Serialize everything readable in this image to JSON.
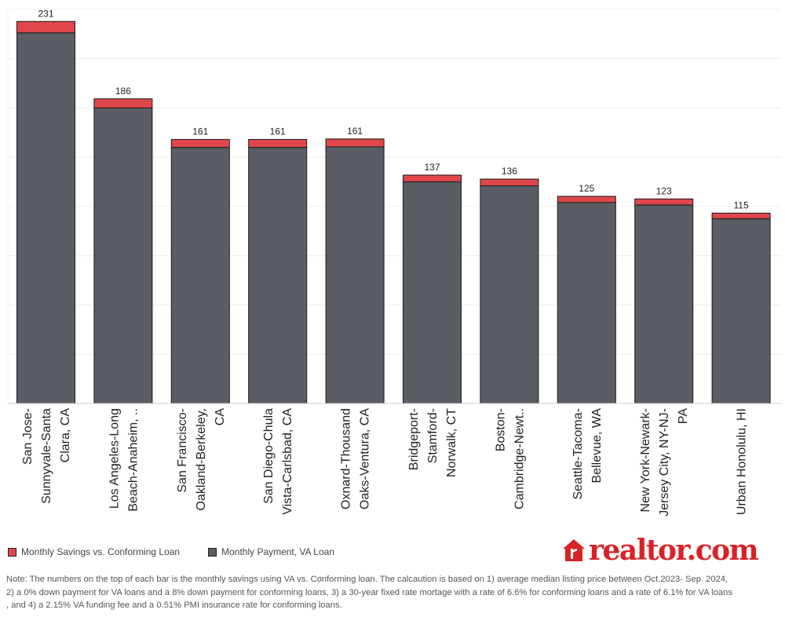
{
  "chart_data": {
    "type": "bar",
    "stacked": true,
    "categories": [
      [
        "San Jose-",
        "Sunnyvale-Santa",
        "Clara, CA"
      ],
      [
        "Los Angeles-Long",
        "Beach-Anaheim, .."
      ],
      [
        "San Francisco-",
        "Oakland-Berkeley,",
        "CA"
      ],
      [
        "San Diego-Chula",
        "Vista-Carlsbad, CA"
      ],
      [
        "Oxnard-Thousand",
        "Oaks-Ventura, CA"
      ],
      [
        "Bridgeport-",
        "Stamford-",
        "Norwalk, CT"
      ],
      [
        "Boston-",
        "Cambridge-Newt.."
      ],
      [
        "Seattle-Tacoma-",
        "Bellevue, WA"
      ],
      [
        "New York-Newark-",
        "Jersey City, NY-NJ-",
        "PA"
      ],
      [
        "Urban Honolulu, HI"
      ]
    ],
    "series": [
      {
        "name": "Monthly Payment, VA Loan",
        "color": "#5a5d63",
        "values": [
          7525,
          6000,
          5200,
          5200,
          5210,
          4500,
          4420,
          4080,
          4030,
          3750
        ]
      },
      {
        "name": "Monthly Savings vs. Conforming Loan",
        "color": "#e0474c",
        "values": [
          231,
          186,
          161,
          161,
          161,
          137,
          136,
          125,
          123,
          115
        ]
      }
    ],
    "data_labels": [
      "231",
      "186",
      "161",
      "161",
      "161",
      "137",
      "136",
      "125",
      "123",
      "115"
    ],
    "ylim": [
      0,
      8000
    ],
    "ytick_step": 1000,
    "grid": true,
    "legend_position": "bottom-left"
  },
  "legend": {
    "savings_label": "Monthly Savings vs. Conforming Loan",
    "payment_label": "Monthly Payment, VA Loan",
    "savings_color": "#e0474c",
    "payment_color": "#5a5d63"
  },
  "logo": {
    "text": "realtor.com",
    "color": "#d92228",
    "icon": "house-r-icon"
  },
  "note": "Note: The numbers on the top of each bar is the monthly savings using VA  vs. Conforming loan. The calcaution is based on 1) average median listing price between Oct.2023- Sep. 2024, 2) a 0% down payment for VA loans and a 8%  down payment for conforming loans, 3)  a 30-year fixed rate mortage  with a rate of 6.6% for conforming loans and a rate of 6.1% for VA loans , and 4)  a 2.15% VA funding fee and a 0.51% PMI insurance rate for conforming loans."
}
